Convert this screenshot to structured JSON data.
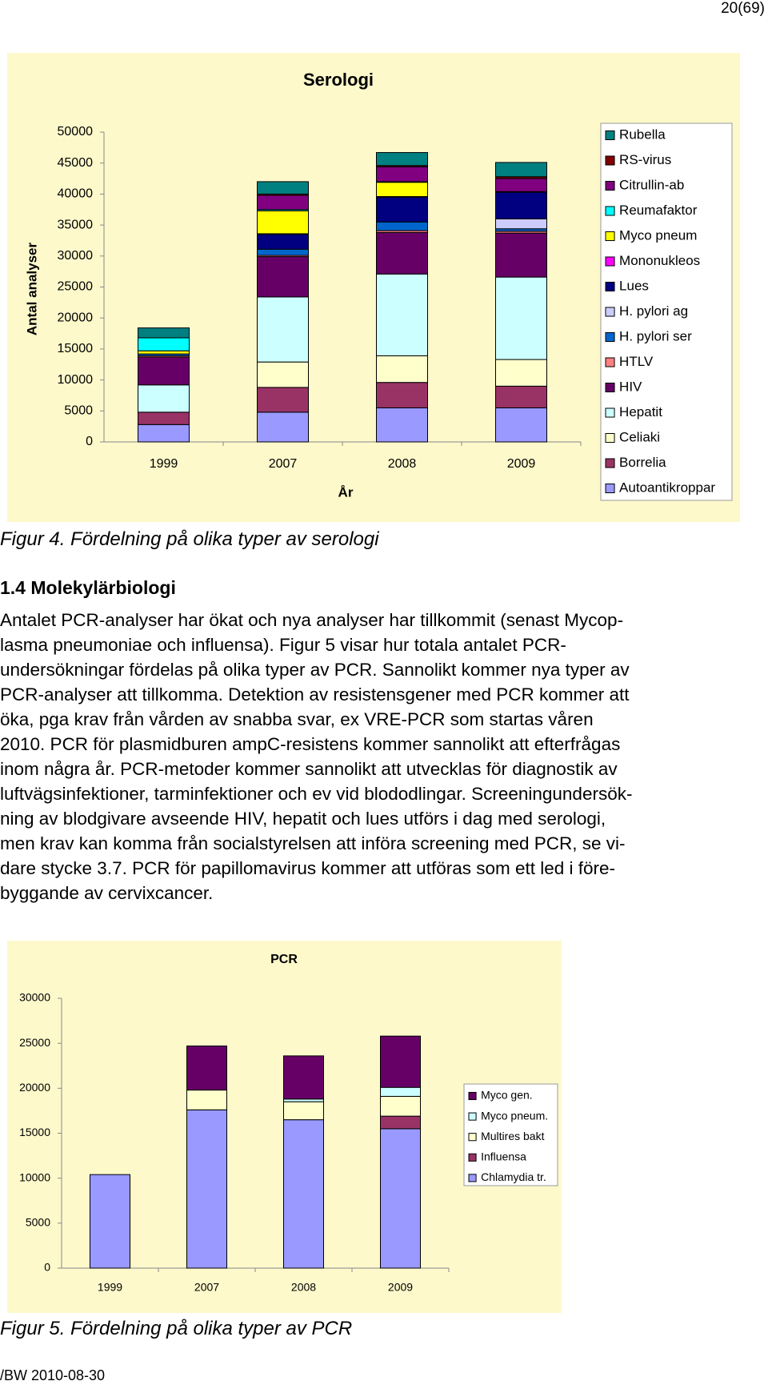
{
  "page_number": "20(69)",
  "chart_data": [
    {
      "type": "bar",
      "stacked": true,
      "title": "Serologi",
      "y_label": "Antal analyser",
      "x_label": "År",
      "categories": [
        "1999",
        "2007",
        "2008",
        "2009"
      ],
      "ylim": [
        0,
        50000
      ],
      "yticks": [
        0,
        5000,
        10000,
        15000,
        20000,
        25000,
        30000,
        35000,
        40000,
        45000,
        50000
      ],
      "series": [
        {
          "name": "Autoantikroppar",
          "color": "#9999ff",
          "values": [
            2800,
            4800,
            5500,
            5500
          ]
        },
        {
          "name": "Borrelia",
          "color": "#993366",
          "values": [
            2000,
            4000,
            4100,
            3500
          ]
        },
        {
          "name": "Celiaki",
          "color": "#ffffcc",
          "values": [
            0,
            4100,
            4300,
            4300
          ]
        },
        {
          "name": "Hepatit",
          "color": "#ccffff",
          "values": [
            4400,
            10500,
            13200,
            13300
          ]
        },
        {
          "name": "HIV",
          "color": "#660066",
          "values": [
            4500,
            6500,
            6700,
            7100
          ]
        },
        {
          "name": "HTLV",
          "color": "#ff8080",
          "values": [
            200,
            200,
            300,
            300
          ]
        },
        {
          "name": "H. pylori ser",
          "color": "#0066cc",
          "values": [
            300,
            1000,
            1400,
            400
          ]
        },
        {
          "name": "H. pylori ag",
          "color": "#ccccff",
          "values": [
            0,
            0,
            0,
            1600
          ]
        },
        {
          "name": "Lues",
          "color": "#000080",
          "values": [
            0,
            2400,
            4000,
            4300
          ]
        },
        {
          "name": "Mononukleos",
          "color": "#ff00ff",
          "values": [
            0,
            100,
            100,
            100
          ]
        },
        {
          "name": "Myco pneum",
          "color": "#ffff00",
          "values": [
            500,
            3700,
            2300,
            0
          ]
        },
        {
          "name": "Reumafaktor",
          "color": "#00ffff",
          "values": [
            2100,
            200,
            100,
            0
          ]
        },
        {
          "name": "Citrullin-ab",
          "color": "#800080",
          "values": [
            0,
            2300,
            2400,
            2100
          ]
        },
        {
          "name": "RS-virus",
          "color": "#800000",
          "values": [
            0,
            200,
            200,
            300
          ]
        },
        {
          "name": "Rubella",
          "color": "#008080",
          "values": [
            1600,
            2000,
            2100,
            2300
          ]
        }
      ]
    },
    {
      "type": "bar",
      "stacked": true,
      "title": "PCR",
      "categories": [
        "1999",
        "2007",
        "2008",
        "2009"
      ],
      "ylim": [
        0,
        30000
      ],
      "yticks": [
        0,
        5000,
        10000,
        15000,
        20000,
        25000,
        30000
      ],
      "series": [
        {
          "name": "Chlamydia tr.",
          "color": "#9999ff",
          "values": [
            10400,
            17600,
            16500,
            15500
          ]
        },
        {
          "name": "Influensa",
          "color": "#993366",
          "values": [
            0,
            0,
            0,
            1400
          ]
        },
        {
          "name": "Multires bakt",
          "color": "#ffffcc",
          "values": [
            0,
            2200,
            2000,
            2200
          ]
        },
        {
          "name": "Myco pneum.",
          "color": "#ccffff",
          "values": [
            0,
            0,
            300,
            1000
          ]
        },
        {
          "name": "Myco gen.",
          "color": "#660066",
          "values": [
            0,
            4900,
            4800,
            5700
          ]
        }
      ]
    }
  ],
  "captions": [
    "Figur 4. Fördelning på olika typer av serologi",
    "Figur 5. Fördelning på olika typer av PCR"
  ],
  "section": {
    "heading": "1.4 Molekylärbiologi",
    "lines": [
      "Antalet PCR-analyser har ökat och nya analyser har tillkommit (senast Mycop-",
      "lasma pneumoniae och influensa). Figur 5 visar hur totala antalet PCR-",
      "undersökningar fördelas på olika typer av PCR. Sannolikt kommer nya typer av",
      "PCR-analyser att tillkomma. Detektion av resistensgener med PCR kommer att",
      "öka, pga krav från vården av snabba svar, ex VRE-PCR som startas våren",
      "2010. PCR för plasmidburen ampC-resistens kommer sannolikt att efterfrågas",
      "inom några år. PCR-metoder kommer sannolikt att utvecklas för diagnostik av",
      "luftvägsinfektioner, tarminfektioner och ev vid blododlingar. Screeningundersök-",
      "ning av blodgivare avseende HIV, hepatit och lues utförs i dag med serologi,",
      "men krav kan komma från socialstyrelsen att införa screening med PCR, se vi-",
      "dare stycke 3.7. PCR för papillomavirus kommer att utföras som ett led i före-",
      "byggande av cervixcancer."
    ]
  },
  "footer": "/BW 2010-08-30"
}
